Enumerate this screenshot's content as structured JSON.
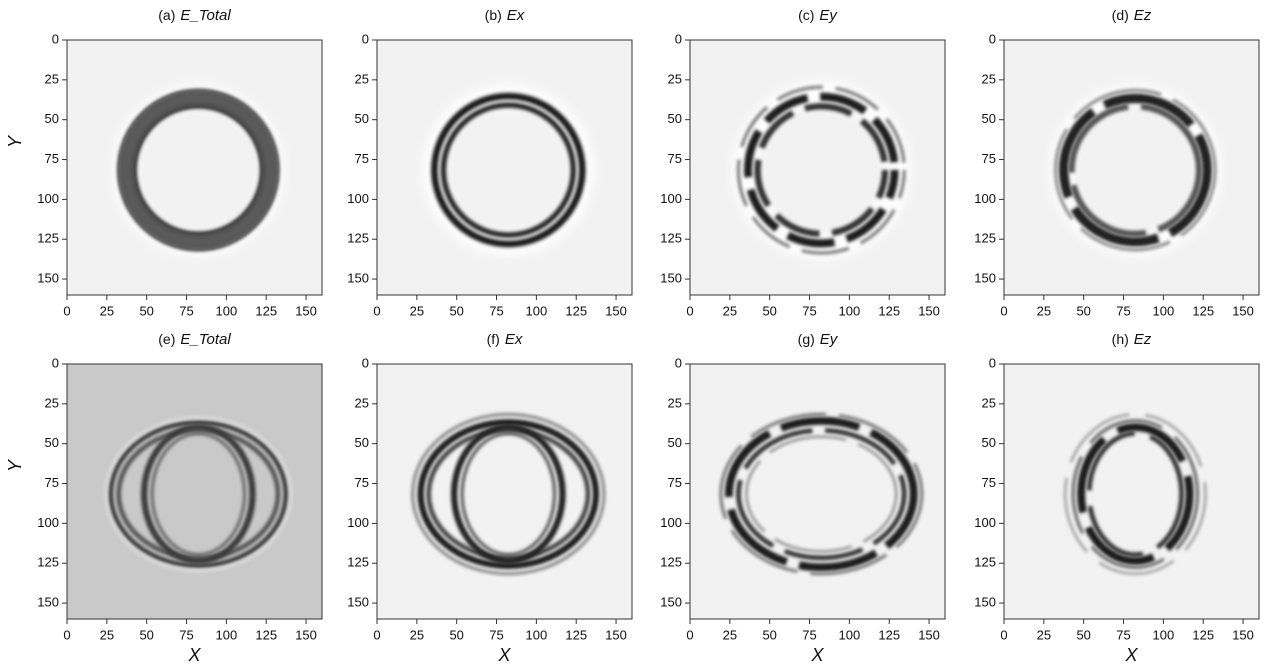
{
  "chart_data": [
    {
      "type": "image",
      "panel": "(a)",
      "title": "E_Total",
      "background": "#f2f2f2",
      "xlim": [
        0,
        160
      ],
      "ylim": [
        160,
        0
      ],
      "xticks": [
        0,
        25,
        50,
        75,
        100,
        125,
        150
      ],
      "yticks": [
        0,
        25,
        50,
        75,
        100,
        125,
        150
      ],
      "ylabel": "Y"
    },
    {
      "type": "image",
      "panel": "(b)",
      "title": "Ex",
      "background": "#f2f2f2",
      "xlim": [
        0,
        160
      ],
      "ylim": [
        160,
        0
      ],
      "xticks": [
        0,
        25,
        50,
        75,
        100,
        125,
        150
      ],
      "yticks": [
        0,
        25,
        50,
        75,
        100,
        125,
        150
      ]
    },
    {
      "type": "image",
      "panel": "(c)",
      "title": "Ey",
      "background": "#f2f2f2",
      "xlim": [
        0,
        160
      ],
      "ylim": [
        160,
        0
      ],
      "xticks": [
        0,
        25,
        50,
        75,
        100,
        125,
        150
      ],
      "yticks": [
        0,
        25,
        50,
        75,
        100,
        125,
        150
      ]
    },
    {
      "type": "image",
      "panel": "(d)",
      "title": "Ez",
      "background": "#f2f2f2",
      "xlim": [
        0,
        160
      ],
      "ylim": [
        160,
        0
      ],
      "xticks": [
        0,
        25,
        50,
        75,
        100,
        125,
        150
      ],
      "yticks": [
        0,
        25,
        50,
        75,
        100,
        125,
        150
      ]
    },
    {
      "type": "image",
      "panel": "(e)",
      "title": "E_Total",
      "background": "#c9c9c9",
      "xlim": [
        0,
        160
      ],
      "ylim": [
        160,
        0
      ],
      "xticks": [
        0,
        25,
        50,
        75,
        100,
        125,
        150
      ],
      "yticks": [
        0,
        25,
        50,
        75,
        100,
        125,
        150
      ],
      "xlabel": "X",
      "ylabel": "Y"
    },
    {
      "type": "image",
      "panel": "(f)",
      "title": "Ex",
      "background": "#f2f2f2",
      "xlim": [
        0,
        160
      ],
      "ylim": [
        160,
        0
      ],
      "xticks": [
        0,
        25,
        50,
        75,
        100,
        125,
        150
      ],
      "yticks": [
        0,
        25,
        50,
        75,
        100,
        125,
        150
      ],
      "xlabel": "X"
    },
    {
      "type": "image",
      "panel": "(g)",
      "title": "Ey",
      "background": "#f2f2f2",
      "xlim": [
        0,
        160
      ],
      "ylim": [
        160,
        0
      ],
      "xticks": [
        0,
        25,
        50,
        75,
        100,
        125,
        150
      ],
      "yticks": [
        0,
        25,
        50,
        75,
        100,
        125,
        150
      ],
      "xlabel": "X"
    },
    {
      "type": "image",
      "panel": "(h)",
      "title": "Ez",
      "background": "#f2f2f2",
      "xlim": [
        0,
        160
      ],
      "ylim": [
        160,
        0
      ],
      "xticks": [
        0,
        25,
        50,
        75,
        100,
        125,
        150
      ],
      "yticks": [
        0,
        25,
        50,
        75,
        100,
        125,
        150
      ],
      "xlabel": "X"
    }
  ]
}
